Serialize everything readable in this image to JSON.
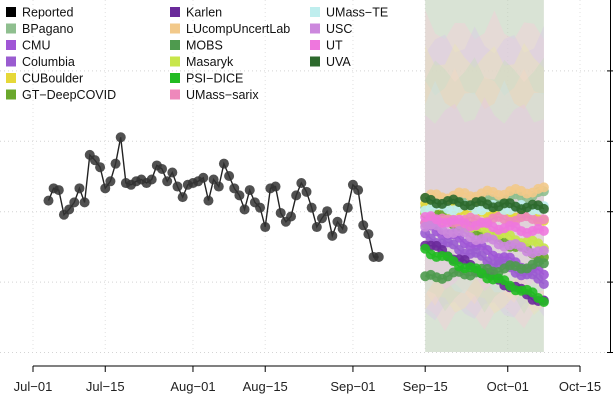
{
  "chart_data": {
    "type": "line",
    "title": "",
    "xlabel": "",
    "ylabel": "",
    "x_ticks": [
      "Jul−01",
      "Jul−15",
      "Aug−01",
      "Aug−15",
      "Sep−01",
      "Sep−15",
      "Oct−01",
      "Oct−15"
    ],
    "x_tick_days": [
      0,
      14,
      31,
      45,
      62,
      76,
      92,
      106
    ],
    "xlim": [
      0,
      106
    ],
    "ylim": [
      0,
      1
    ],
    "grid": true,
    "legend_position": "top-left",
    "legend": [
      {
        "name": "Reported",
        "color": "#000000"
      },
      {
        "name": "BPagano",
        "color": "#8fbf8f"
      },
      {
        "name": "CMU",
        "color": "#a056d6"
      },
      {
        "name": "Columbia",
        "color": "#9a5cd0"
      },
      {
        "name": "CUBoulder",
        "color": "#e6d838"
      },
      {
        "name": "GT−DeepCOVID",
        "color": "#6aa82c"
      },
      {
        "name": "Karlen",
        "color": "#6a2a9a"
      },
      {
        "name": "LUcompUncertLab",
        "color": "#f2c98a"
      },
      {
        "name": "MOBS",
        "color": "#4e9a4e"
      },
      {
        "name": "Masaryk",
        "color": "#c8e64a"
      },
      {
        "name": "PSI−DICE",
        "color": "#22bb22"
      },
      {
        "name": "UMass−sarix",
        "color": "#ee88bb"
      },
      {
        "name": "UMass−TE",
        "color": "#bfeeee"
      },
      {
        "name": "USC",
        "color": "#cc88dd"
      },
      {
        "name": "UT",
        "color": "#ee77dd"
      },
      {
        "name": "UVA",
        "color": "#2d6a2d"
      }
    ],
    "reported": {
      "x": [
        3,
        4,
        5,
        6,
        7,
        8,
        9,
        10,
        11,
        12,
        13,
        14,
        15,
        16,
        17,
        18,
        19,
        20,
        21,
        22,
        23,
        24,
        25,
        26,
        27,
        28,
        29,
        30,
        31,
        32,
        33,
        34,
        35,
        36,
        37,
        38,
        39,
        40,
        41,
        42,
        43,
        44,
        45,
        46,
        47,
        48,
        49,
        50,
        51,
        52,
        53,
        54,
        55,
        56,
        57,
        58,
        59,
        60,
        61,
        62,
        63,
        64,
        65,
        66,
        67
      ],
      "y": [
        0.43,
        0.465,
        0.46,
        0.39,
        0.405,
        0.425,
        0.465,
        0.425,
        0.56,
        0.545,
        0.525,
        0.465,
        0.485,
        0.535,
        0.61,
        0.48,
        0.475,
        0.485,
        0.49,
        0.48,
        0.49,
        0.53,
        0.52,
        0.485,
        0.51,
        0.47,
        0.44,
        0.475,
        0.48,
        0.485,
        0.495,
        0.43,
        0.49,
        0.47,
        0.535,
        0.5,
        0.465,
        0.445,
        0.405,
        0.46,
        0.425,
        0.41,
        0.355,
        0.465,
        0.47,
        0.395,
        0.37,
        0.385,
        0.445,
        0.48,
        0.455,
        0.41,
        0.355,
        0.38,
        0.4,
        0.33,
        0.37,
        0.35,
        0.41,
        0.475,
        0.46,
        0.36,
        0.335,
        0.27,
        0.27
      ],
      "y_note": "normalized 0-1 within ylim"
    },
    "forecast_window": [
      76,
      99
    ],
    "forecasts": [
      {
        "name": "BPagano",
        "color": "#8fbf8f",
        "start": 0.41,
        "end": 0.45
      },
      {
        "name": "CMU",
        "color": "#a056d6",
        "start": 0.36,
        "end": 0.22
      },
      {
        "name": "Columbia",
        "color": "#9a5cd0",
        "start": 0.33,
        "end": 0.2
      },
      {
        "name": "CUBoulder",
        "color": "#e6d838",
        "start": 0.42,
        "end": 0.38
      },
      {
        "name": "GT−DeepCOVID",
        "color": "#6aa82c",
        "start": 0.4,
        "end": 0.27
      },
      {
        "name": "Karlen",
        "color": "#6a2a9a",
        "start": 0.31,
        "end": 0.14
      },
      {
        "name": "LUcompUncertLab",
        "color": "#f2c98a",
        "start": 0.44,
        "end": 0.46
      },
      {
        "name": "MOBS",
        "color": "#4e9a4e",
        "start": 0.21,
        "end": 0.25
      },
      {
        "name": "Masaryk",
        "color": "#c8e64a",
        "start": 0.39,
        "end": 0.3
      },
      {
        "name": "PSI−DICE",
        "color": "#22bb22",
        "start": 0.29,
        "end": 0.15
      },
      {
        "name": "UMass−sarix",
        "color": "#ee88bb",
        "start": 0.37,
        "end": 0.38
      },
      {
        "name": "UMass−TE",
        "color": "#bfeeee",
        "start": 0.41,
        "end": 0.41
      },
      {
        "name": "USC",
        "color": "#cc88dd",
        "start": 0.36,
        "end": 0.28
      },
      {
        "name": "UT",
        "color": "#ee77dd",
        "start": 0.38,
        "end": 0.34
      },
      {
        "name": "UVA",
        "color": "#2d6a2d",
        "start": 0.43,
        "end": 0.41
      }
    ]
  }
}
